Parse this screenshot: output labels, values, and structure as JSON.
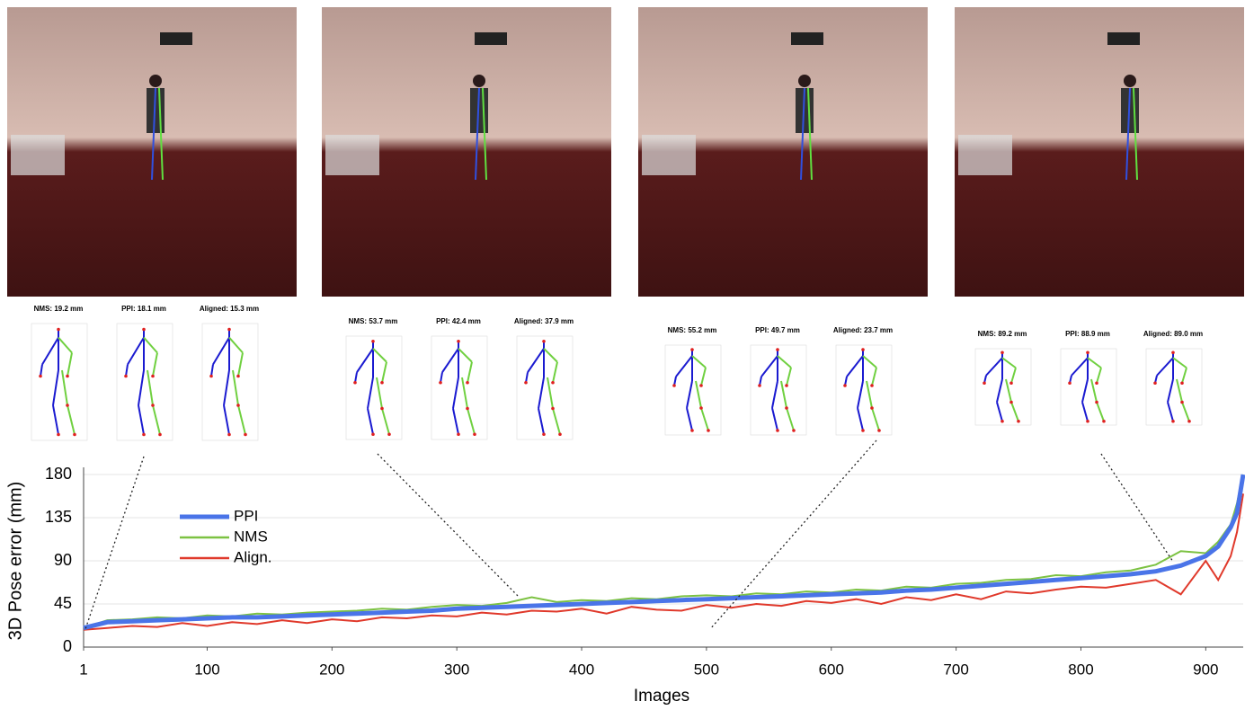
{
  "chart_data": {
    "type": "line",
    "y_label": "3D Pose error (mm)",
    "x_label": "Images",
    "x": [
      1,
      20,
      40,
      60,
      80,
      100,
      120,
      140,
      160,
      180,
      200,
      220,
      240,
      260,
      280,
      300,
      320,
      340,
      360,
      380,
      400,
      420,
      440,
      460,
      480,
      500,
      520,
      540,
      560,
      580,
      600,
      620,
      640,
      660,
      680,
      700,
      720,
      740,
      760,
      780,
      800,
      820,
      840,
      860,
      880,
      900,
      910,
      920,
      925,
      930
    ],
    "series": [
      {
        "name": "PPI",
        "color": "#4a74e8",
        "values": [
          20,
          26,
          27,
          28,
          29,
          30,
          31,
          31,
          32,
          33,
          34,
          35,
          36,
          37,
          38,
          40,
          41,
          42,
          43,
          44,
          45,
          46,
          47,
          48,
          49,
          50,
          51,
          52,
          53,
          54,
          55,
          56,
          57,
          59,
          60,
          62,
          64,
          66,
          68,
          70,
          72,
          74,
          76,
          79,
          85,
          95,
          105,
          125,
          140,
          180
        ]
      },
      {
        "name": "NMS",
        "color": "#7cc242",
        "values": [
          20,
          28,
          29,
          31,
          30,
          33,
          32,
          35,
          34,
          36,
          37,
          38,
          40,
          39,
          42,
          44,
          43,
          46,
          52,
          47,
          49,
          48,
          51,
          50,
          53,
          54,
          53,
          56,
          55,
          58,
          57,
          60,
          59,
          63,
          62,
          66,
          67,
          70,
          71,
          75,
          74,
          78,
          80,
          86,
          100,
          98,
          110,
          128,
          150,
          180
        ]
      },
      {
        "name": "Align.",
        "color": "#e0392b",
        "values": [
          18,
          20,
          22,
          21,
          25,
          22,
          26,
          24,
          28,
          25,
          29,
          27,
          31,
          30,
          33,
          32,
          36,
          34,
          38,
          37,
          40,
          35,
          42,
          39,
          38,
          44,
          41,
          45,
          43,
          48,
          46,
          50,
          45,
          52,
          49,
          55,
          50,
          58,
          56,
          60,
          63,
          62,
          66,
          70,
          55,
          90,
          70,
          95,
          120,
          160
        ]
      }
    ],
    "xlim": [
      1,
      930
    ],
    "ylim": [
      0,
      180
    ],
    "xticks": [
      1,
      100,
      200,
      300,
      400,
      500,
      600,
      700,
      800,
      900
    ],
    "yticks": [
      0,
      45,
      90,
      135,
      180
    ],
    "grid": true,
    "legend": "upper left"
  },
  "panels": [
    {
      "labels": [
        "NMS: 19.2 mm",
        "PPI: 18.1 mm",
        "Aligned: 15.3 mm"
      ]
    },
    {
      "labels": [
        "NMS: 53.7 mm",
        "PPI: 42.4 mm",
        "Aligned: 37.9 mm"
      ]
    },
    {
      "labels": [
        "NMS: 55.2 mm",
        "PPI: 49.7 mm",
        "Aligned: 23.7 mm"
      ]
    },
    {
      "labels": [
        "NMS: 89.2 mm",
        "PPI: 88.9 mm",
        "Aligned: 89.0 mm"
      ]
    }
  ]
}
